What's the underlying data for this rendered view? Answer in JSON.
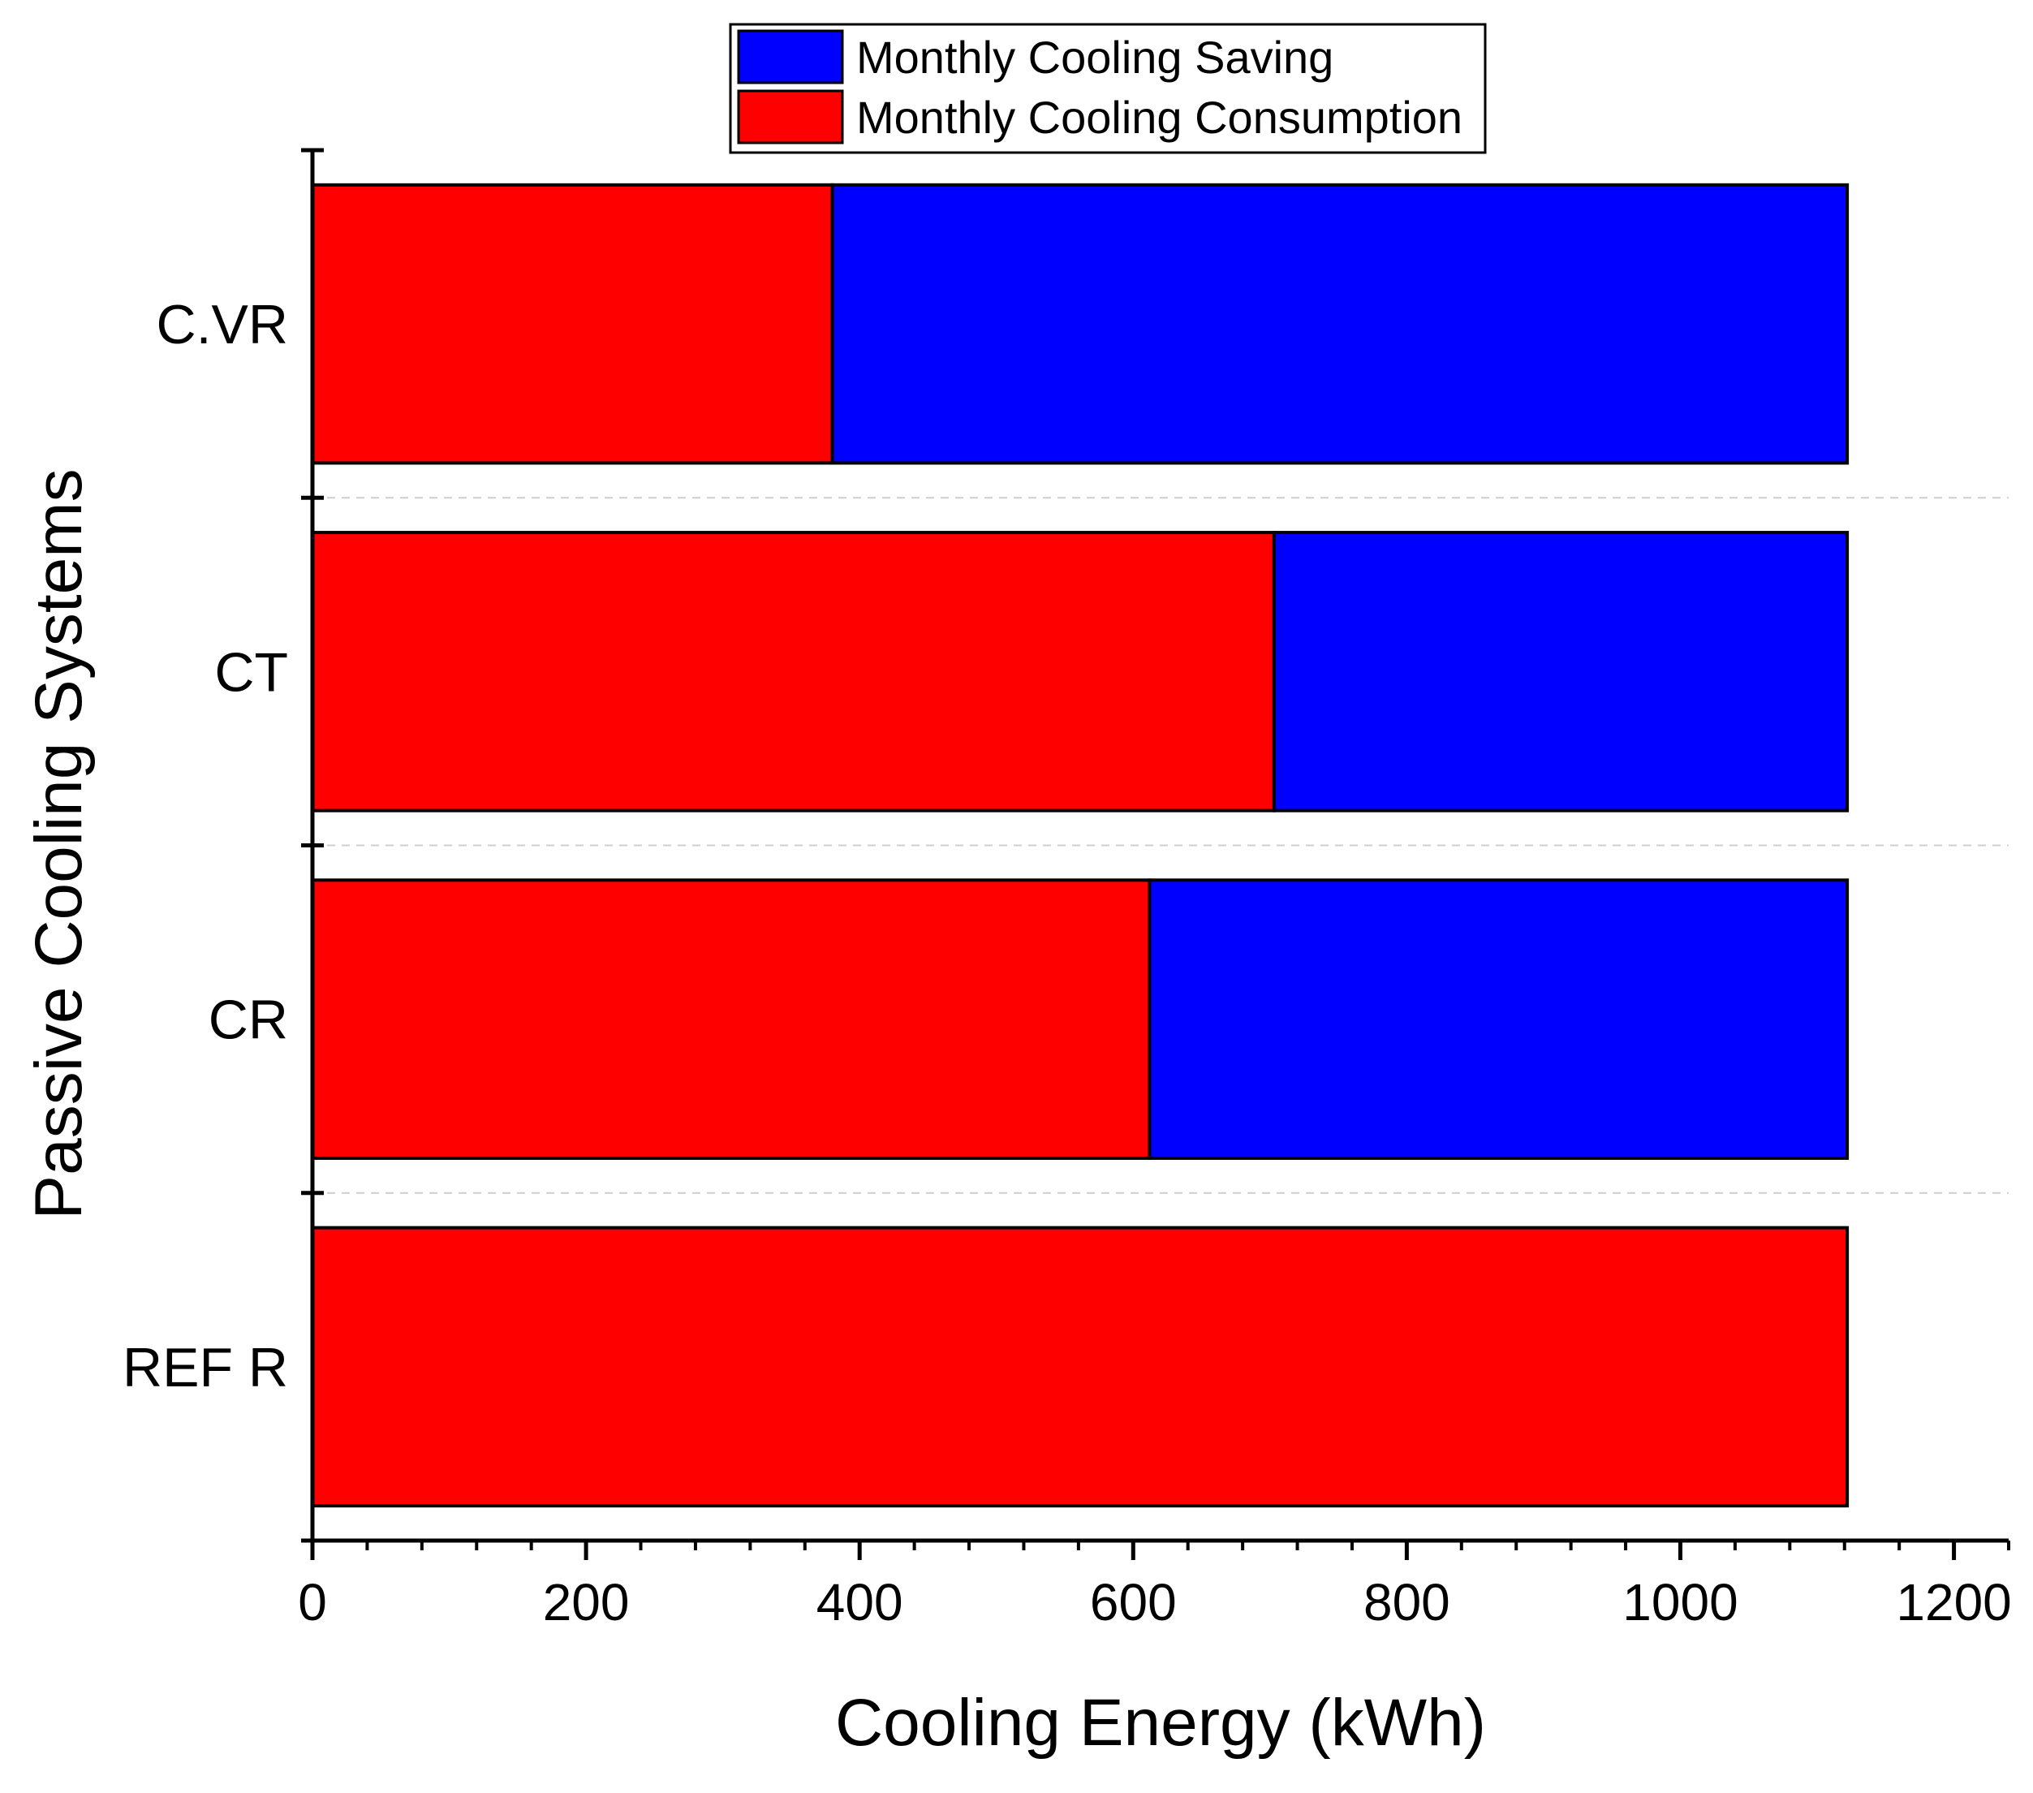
{
  "chart_data": {
    "type": "bar",
    "orientation": "horizontal",
    "stacked": true,
    "categories": [
      "C.VR",
      "CT",
      "CR",
      "REF R"
    ],
    "series": [
      {
        "name": "Monthly Cooling Consumption",
        "color": "#ff0000",
        "values": [
          380,
          703,
          612,
          1122
        ]
      },
      {
        "name": "Monthly Cooling Saving",
        "color": "#0000ff",
        "values": [
          742,
          419,
          510,
          0
        ]
      }
    ],
    "xlabel": "Cooling Energy (kWh)",
    "ylabel": "Passive Cooling Systems",
    "xlim": [
      0,
      1240
    ],
    "xticks": [
      0,
      200,
      400,
      600,
      800,
      1000,
      1200
    ],
    "x_minor_step": 40,
    "grid": "dashed separators between categories",
    "legend": {
      "position": "top-center",
      "entries": [
        "Monthly Cooling Saving",
        "Monthly Cooling Consumption"
      ]
    }
  }
}
